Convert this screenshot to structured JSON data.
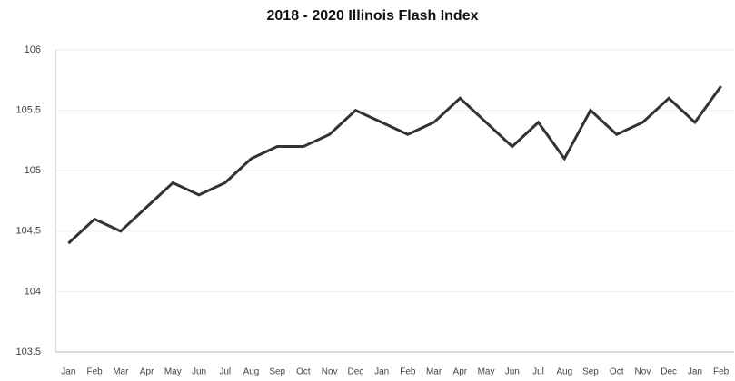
{
  "chart_data": {
    "type": "line",
    "title": "2018 - 2020 Illinois Flash Index",
    "categories": [
      "Jan",
      "Feb",
      "Mar",
      "Apr",
      "May",
      "Jun",
      "Jul",
      "Aug",
      "Sep",
      "Oct",
      "Nov",
      "Dec",
      "Jan",
      "Feb",
      "Mar",
      "Apr",
      "May",
      "Jun",
      "Jul",
      "Aug",
      "Sep",
      "Oct",
      "Nov",
      "Dec",
      "Jan",
      "Feb"
    ],
    "series": [
      {
        "name": "Illinois Flash Index",
        "color": "#333333",
        "values": [
          104.4,
          104.6,
          104.5,
          104.7,
          104.9,
          104.8,
          104.9,
          105.1,
          105.2,
          105.2,
          105.3,
          105.5,
          105.4,
          105.3,
          105.4,
          105.6,
          105.4,
          105.2,
          105.4,
          105.1,
          105.5,
          105.3,
          105.4,
          105.6,
          105.4,
          105.7
        ]
      }
    ],
    "ylim": [
      103.5,
      106
    ],
    "yticks": [
      103.5,
      104,
      104.5,
      105,
      105.5,
      106
    ],
    "grid": true
  }
}
